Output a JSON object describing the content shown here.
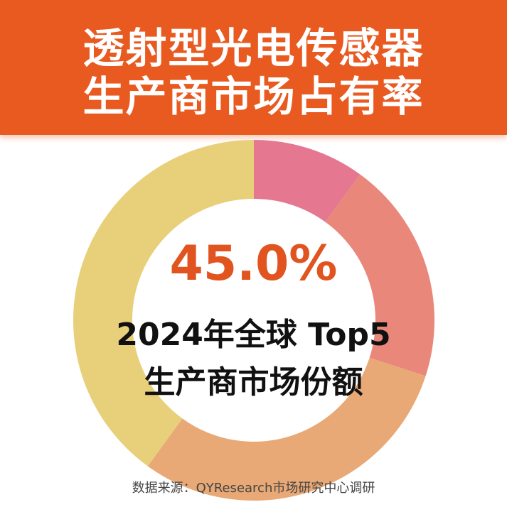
{
  "header": {
    "title_line1": "透射型光电传感器",
    "title_line2": "生产商市场占有率",
    "background_color": "#E85A20"
  },
  "chart_data": {
    "type": "pie",
    "style": "donut",
    "start": "top, clockwise",
    "values": [
      10,
      20,
      30,
      40
    ],
    "colors": [
      "#E57791",
      "#E8877A",
      "#E8A976",
      "#E8D07A"
    ],
    "center_value": "45.0%",
    "center_label_line1": "2024年全球 Top5",
    "center_label_line2": "生产商市场份额"
  },
  "source": "数据来源：QYResearch市场研究中心调研"
}
